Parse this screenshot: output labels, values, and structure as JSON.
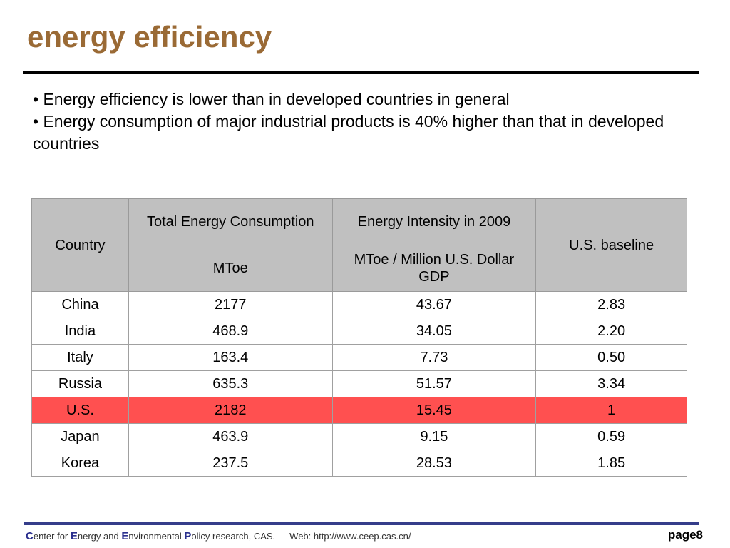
{
  "slide": {
    "title": "energy efficiency",
    "bullets": [
      "• Energy efficiency is lower than in developed countries in general",
      "• Energy consumption of major industrial products is 40% higher than that in developed countries"
    ]
  },
  "table": {
    "header": {
      "country": "Country",
      "total_energy": "Total Energy Consumption",
      "intensity": "Energy Intensity in 2009",
      "baseline": "U.S. baseline",
      "unit_total": "MToe",
      "unit_intensity": "MToe / Million U.S. Dollar GDP"
    },
    "rows": [
      {
        "country": "China",
        "total": "2177",
        "intensity": "43.67",
        "baseline": "2.83"
      },
      {
        "country": "India",
        "total": "468.9",
        "intensity": "34.05",
        "baseline": "2.20"
      },
      {
        "country": "Italy",
        "total": "163.4",
        "intensity": "7.73",
        "baseline": "0.50"
      },
      {
        "country": "Russia",
        "total": "635.3",
        "intensity": "51.57",
        "baseline": "3.34"
      },
      {
        "country": "U.S.",
        "total": "2182",
        "intensity": "15.45",
        "baseline": "1"
      },
      {
        "country": "Japan",
        "total": "463.9",
        "intensity": "9.15",
        "baseline": "0.59"
      },
      {
        "country": "Korea",
        "total": "237.5",
        "intensity": "28.53",
        "baseline": "1.85"
      }
    ],
    "highlight_color": "#ff5050"
  },
  "footer": {
    "c": "C",
    "enter_for": "enter for ",
    "e1": "E",
    "nergy_and": "nergy and ",
    "e2": "E",
    "nvironmental": "nvironmental ",
    "p": "P",
    "olicy": "olicy research, CAS.",
    "web": "Web: http://www.ceep.cas.cn/",
    "page": "page8"
  },
  "colors": {
    "title": "#9a6a35",
    "footer_bar": "#353d8a"
  }
}
